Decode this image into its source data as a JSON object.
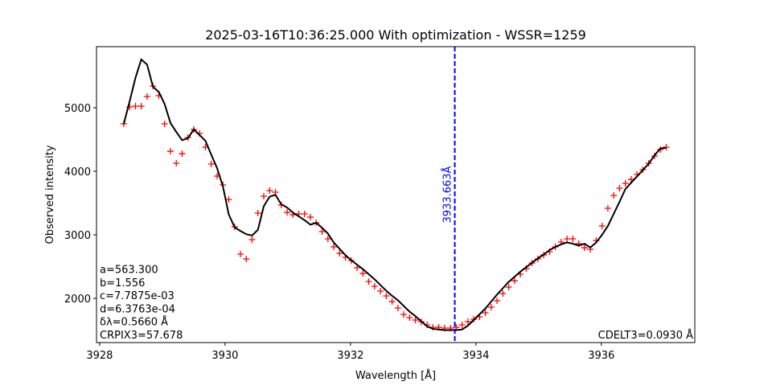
{
  "chart_data": {
    "type": "scatter",
    "title": "2025-03-16T10:36:25.000 With optimization - WSSR=1259",
    "xlabel": "Wavelength [Å]",
    "ylabel": "Observed intensity",
    "xlim": [
      3927.95,
      3937.49
    ],
    "ylim": [
      1304,
      5962
    ],
    "xticks": [
      3928,
      3930,
      3932,
      3934,
      3936
    ],
    "yticks": [
      2000,
      3000,
      4000,
      5000
    ],
    "grid": false,
    "x": [
      3928.385,
      3928.478,
      3928.571,
      3928.664,
      3928.757,
      3928.85,
      3928.943,
      3929.036,
      3929.129,
      3929.222,
      3929.315,
      3929.408,
      3929.501,
      3929.594,
      3929.687,
      3929.78,
      3929.873,
      3929.966,
      3930.059,
      3930.152,
      3930.245,
      3930.338,
      3930.431,
      3930.524,
      3930.617,
      3930.71,
      3930.803,
      3930.896,
      3930.989,
      3931.082,
      3931.175,
      3931.268,
      3931.361,
      3931.454,
      3931.547,
      3931.64,
      3931.733,
      3931.826,
      3931.919,
      3932.012,
      3932.105,
      3932.198,
      3932.291,
      3932.384,
      3932.477,
      3932.57,
      3932.663,
      3932.756,
      3932.849,
      3932.942,
      3933.035,
      3933.128,
      3933.221,
      3933.314,
      3933.407,
      3933.5,
      3933.593,
      3933.686,
      3933.779,
      3933.872,
      3933.965,
      3934.058,
      3934.151,
      3934.244,
      3934.337,
      3934.43,
      3934.523,
      3934.616,
      3934.709,
      3934.802,
      3934.895,
      3934.988,
      3935.081,
      3935.174,
      3935.267,
      3935.36,
      3935.453,
      3935.546,
      3935.639,
      3935.732,
      3935.825,
      3935.918,
      3936.011,
      3936.104,
      3936.197,
      3936.29,
      3936.383,
      3936.476,
      3936.569,
      3936.662,
      3936.755,
      3936.848,
      3936.941,
      3937.034
    ],
    "series": [
      {
        "color": "#ff0000",
        "marker": "plus",
        "values": [
          4747,
          5013,
          5025,
          5025,
          5177,
          5342,
          5190,
          4747,
          4316,
          4127,
          4278,
          4532,
          4658,
          4595,
          4380,
          4114,
          3924,
          3785,
          3557,
          3127,
          2696,
          2620,
          2924,
          3342,
          3608,
          3696,
          3671,
          3468,
          3354,
          3316,
          3329,
          3329,
          3278,
          3190,
          3051,
          2937,
          2810,
          2709,
          2646,
          2595,
          2481,
          2392,
          2266,
          2190,
          2114,
          2038,
          1949,
          1848,
          1747,
          1696,
          1658,
          1633,
          1582,
          1544,
          1544,
          1532,
          1532,
          1544,
          1582,
          1633,
          1671,
          1709,
          1772,
          1861,
          1962,
          2076,
          2177,
          2278,
          2380,
          2468,
          2557,
          2620,
          2684,
          2734,
          2810,
          2886,
          2937,
          2937,
          2861,
          2797,
          2772,
          2911,
          3139,
          3418,
          3620,
          3734,
          3810,
          3873,
          3949,
          4025,
          4127,
          4241,
          4342,
          4380
        ]
      },
      {
        "color": "#000000",
        "marker": "line",
        "values": [
          4747,
          5100,
          5470,
          5760,
          5680,
          5330,
          5250,
          5060,
          4760,
          4620,
          4490,
          4520,
          4660,
          4570,
          4480,
          4260,
          4050,
          3760,
          3320,
          3120,
          3060,
          3010,
          2990,
          3080,
          3450,
          3600,
          3630,
          3480,
          3430,
          3350,
          3290,
          3230,
          3160,
          3190,
          3110,
          3020,
          2880,
          2780,
          2680,
          2600,
          2530,
          2460,
          2380,
          2300,
          2210,
          2120,
          2040,
          1970,
          1880,
          1790,
          1720,
          1640,
          1560,
          1520,
          1510,
          1500,
          1500,
          1500,
          1510,
          1570,
          1660,
          1750,
          1840,
          1950,
          2060,
          2160,
          2260,
          2340,
          2420,
          2490,
          2560,
          2630,
          2690,
          2760,
          2810,
          2850,
          2880,
          2860,
          2830,
          2860,
          2800,
          2880,
          3000,
          3140,
          3330,
          3520,
          3720,
          3820,
          3920,
          4020,
          4120,
          4250,
          4360,
          4370
        ]
      }
    ],
    "vline": {
      "value": 3933.663,
      "label": "3933.663Å",
      "color": "#0000ff"
    },
    "annotations_left": [
      "a=563.300",
      "b=1.556",
      "c=7.7875e-03",
      "d=6.3763e-04",
      "δλ=0.5660 Å",
      "CRPIX3=57.678"
    ],
    "annotation_right": "CDELT3=0.0930 Å"
  }
}
